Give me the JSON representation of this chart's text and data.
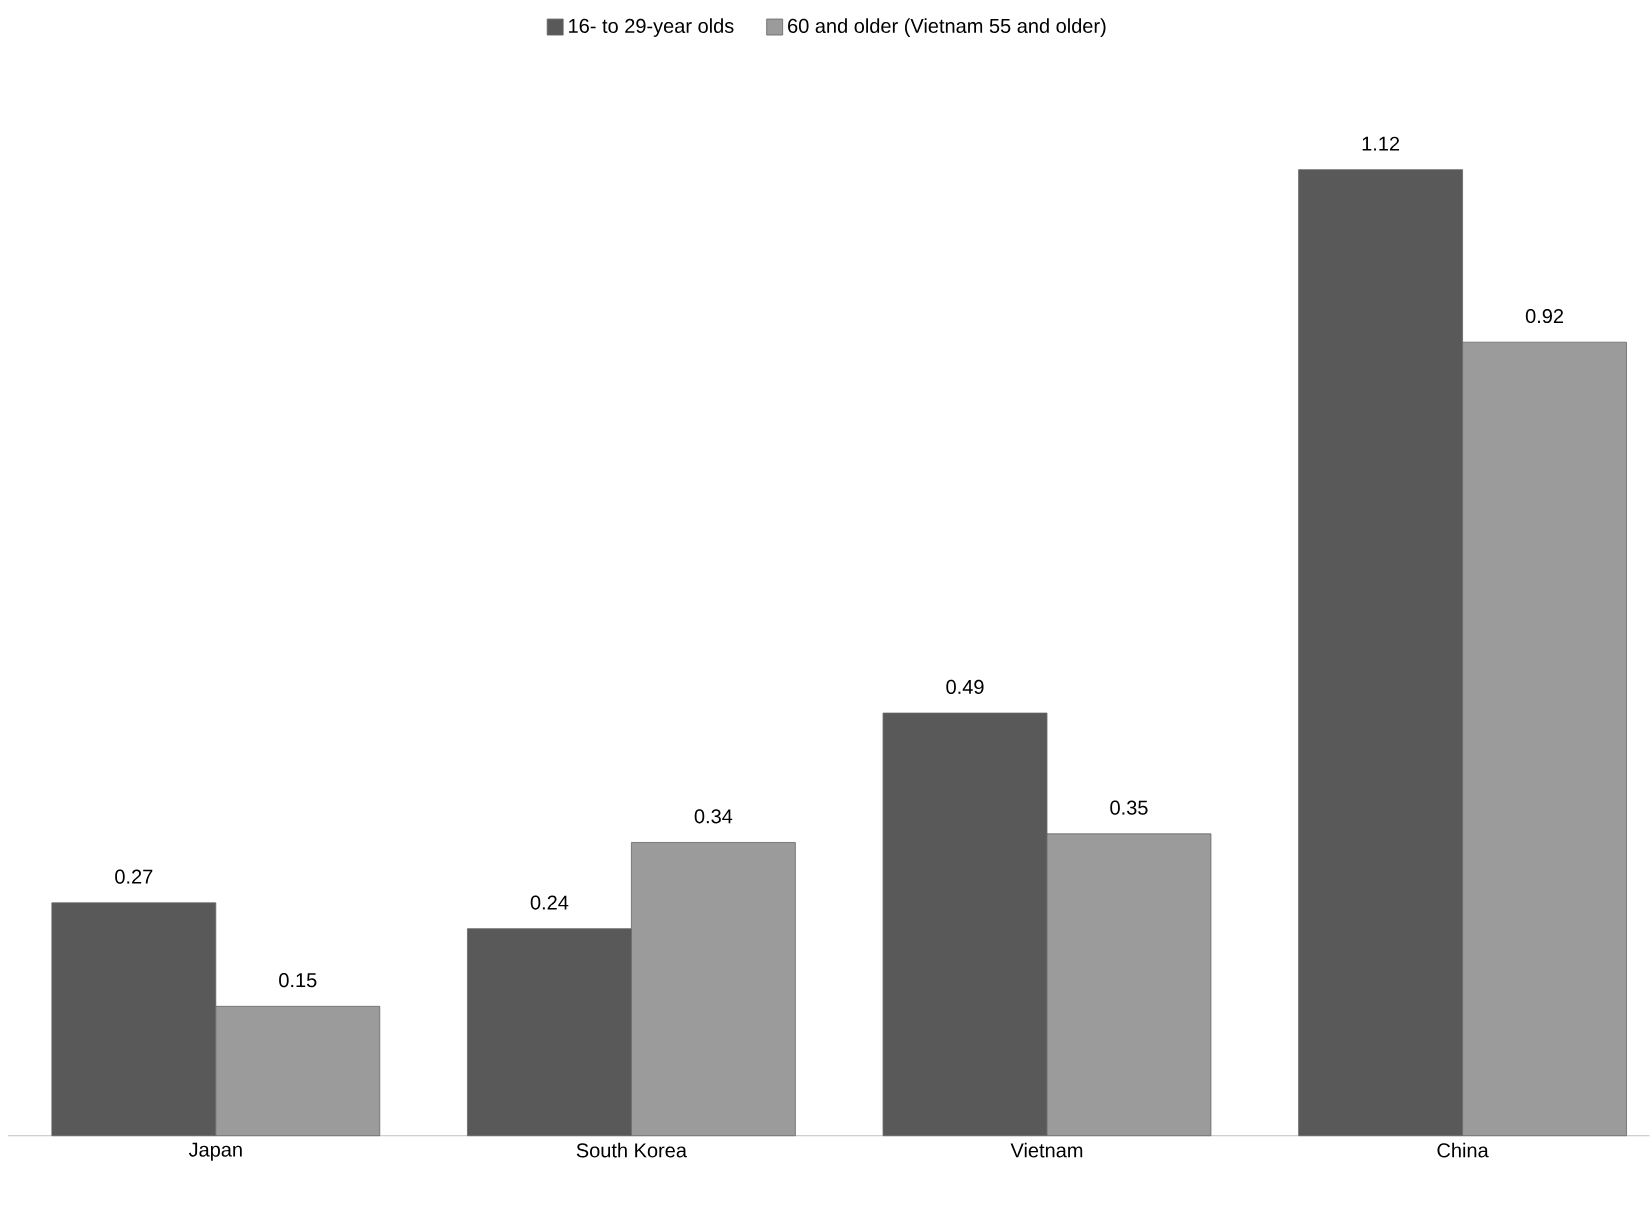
{
  "chart_data": {
    "type": "bar",
    "categories": [
      "Japan",
      "South Korea",
      "Vietnam",
      "China"
    ],
    "series": [
      {
        "name": "16- to 29-year olds",
        "color": "#595959",
        "values": [
          0.27,
          0.24,
          0.49,
          1.12
        ]
      },
      {
        "name": "60 and older (Vietnam 55 and older)",
        "color": "#9b9b9b",
        "values": [
          0.15,
          0.34,
          0.35,
          0.92
        ]
      }
    ],
    "data_labels": true,
    "legend": "top"
  }
}
